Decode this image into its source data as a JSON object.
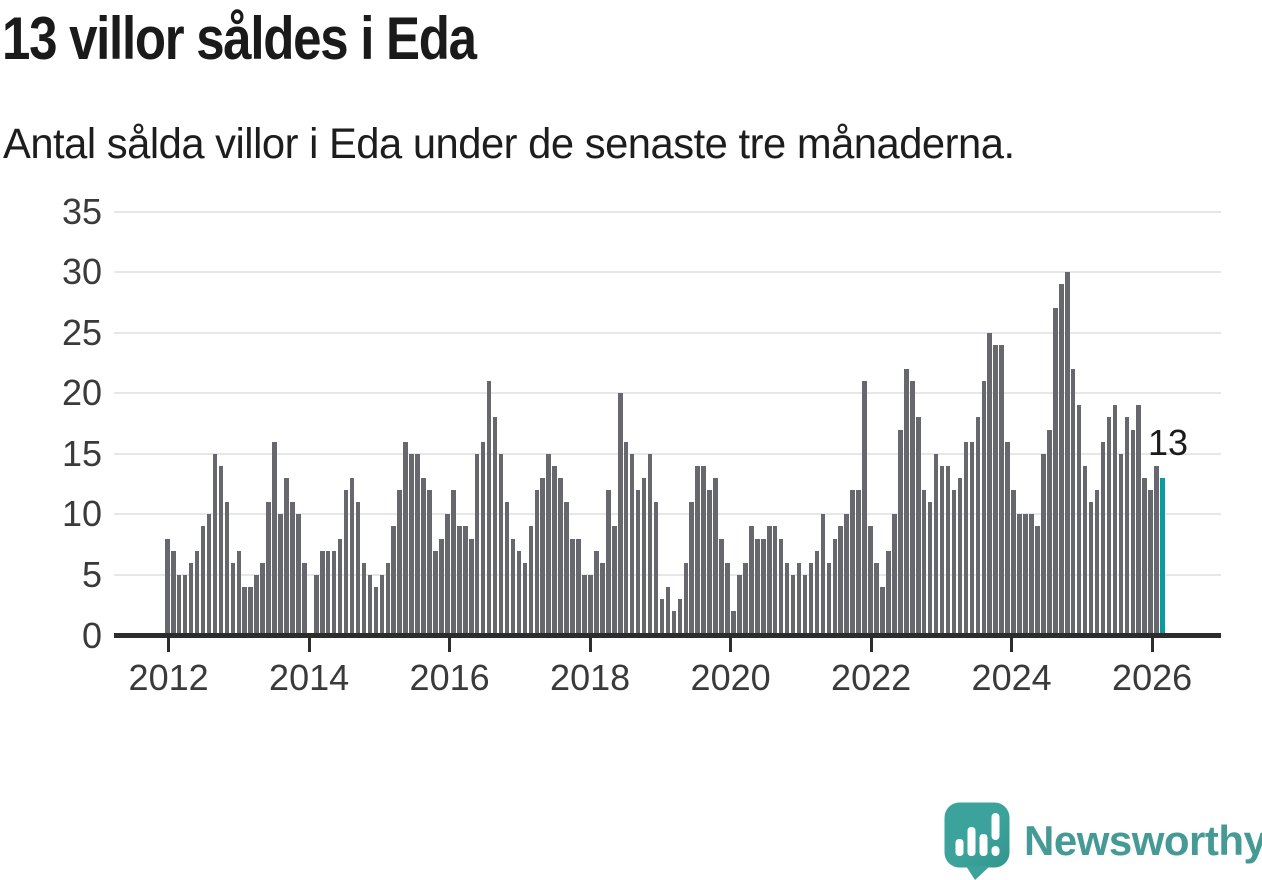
{
  "header": {
    "title": "13 villor såldes i Eda",
    "subtitle": "Antal sålda villor i Eda under de senaste tre månaderna."
  },
  "chart_data": {
    "type": "bar",
    "title": "13 villor såldes i Eda",
    "subtitle": "Antal sålda villor i Eda under de senaste tre månaderna.",
    "x_tick_labels": [
      "2012",
      "2014",
      "2016",
      "2018",
      "2020",
      "2022",
      "2024",
      "2026"
    ],
    "x_range_years": [
      2012,
      2026
    ],
    "frequency": "monthly",
    "y_tick_labels": [
      "0",
      "5",
      "10",
      "15",
      "20",
      "25",
      "30",
      "35"
    ],
    "y_ticks": [
      0,
      5,
      10,
      15,
      20,
      25,
      30,
      35
    ],
    "ylim": [
      0,
      35
    ],
    "grid": true,
    "legend": false,
    "xlabel": "",
    "ylabel": "",
    "values": [
      8,
      7,
      5,
      5,
      6,
      7,
      9,
      10,
      15,
      14,
      11,
      6,
      7,
      4,
      4,
      5,
      6,
      11,
      16,
      10,
      13,
      11,
      10,
      6,
      0,
      5,
      7,
      7,
      7,
      8,
      12,
      13,
      11,
      6,
      5,
      4,
      5,
      6,
      9,
      12,
      16,
      15,
      15,
      13,
      12,
      7,
      8,
      10,
      12,
      9,
      9,
      8,
      15,
      16,
      21,
      18,
      15,
      11,
      8,
      7,
      6,
      9,
      12,
      13,
      15,
      14,
      13,
      11,
      8,
      8,
      5,
      5,
      7,
      6,
      12,
      9,
      20,
      16,
      15,
      12,
      13,
      15,
      11,
      3,
      4,
      2,
      3,
      6,
      11,
      14,
      14,
      12,
      13,
      8,
      6,
      2,
      5,
      6,
      9,
      8,
      8,
      9,
      9,
      8,
      6,
      5,
      6,
      5,
      6,
      7,
      10,
      6,
      8,
      9,
      10,
      12,
      12,
      21,
      9,
      6,
      4,
      7,
      10,
      17,
      22,
      21,
      18,
      12,
      11,
      15,
      14,
      14,
      12,
      13,
      16,
      16,
      18,
      21,
      25,
      24,
      24,
      16,
      12,
      10,
      10,
      10,
      9,
      15,
      17,
      27,
      29,
      30,
      22,
      19,
      14,
      11,
      12,
      16,
      18,
      19,
      15,
      18,
      17,
      19,
      13,
      12,
      14,
      13
    ],
    "highlighted_last_value": 13,
    "annotation": "13",
    "colors": {
      "bar": "#67676e",
      "highlight": "#0c9a9e",
      "grid": "#e7e7e9",
      "axis": "#2c2c2c",
      "tick_text": "#3a3a3a",
      "title_text": "#1a1a1a"
    }
  },
  "branding": {
    "name": "Newsworthy",
    "logo_icon": "newsworthy-speech-bubble-bar-chart-icon",
    "color": "#3ba39b",
    "text_color": "#469a95"
  }
}
